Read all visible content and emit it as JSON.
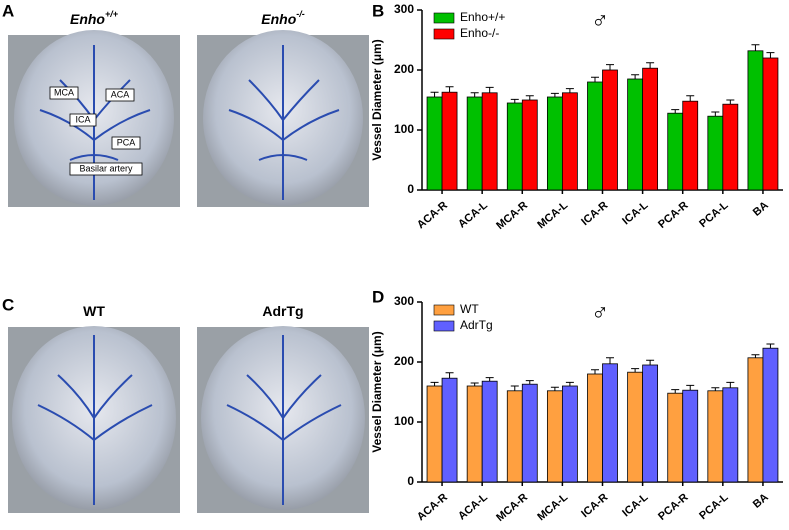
{
  "panel_labels": [
    "A",
    "B",
    "C",
    "D"
  ],
  "images": [
    {
      "base": "Enho",
      "sup": "+/+"
    },
    {
      "base": "Enho",
      "sup": "-/-"
    },
    {
      "base": "WT",
      "sup": null
    },
    {
      "base": "AdrTg",
      "sup": null
    }
  ],
  "annotations": [
    "MCA",
    "ACA",
    "ICA",
    "PCA",
    "Basilar artery"
  ],
  "chart_data": [
    {
      "type": "bar",
      "ylabel": "Vessel Diameter (μm)",
      "symbol": "♂",
      "categories": [
        "ACA-R",
        "ACA-L",
        "MCA-R",
        "MCA-L",
        "ICA-R",
        "ICA-L",
        "PCA-R",
        "PCA-L",
        "BA"
      ],
      "series": [
        {
          "name": "Enho+/+",
          "color": "#00c000",
          "values": [
            155,
            155,
            145,
            155,
            180,
            185,
            128,
            123,
            232
          ],
          "errors": [
            8,
            7,
            6,
            6,
            8,
            7,
            6,
            7,
            10
          ]
        },
        {
          "name": "Enho-/-",
          "color": "#ff0000",
          "values": [
            163,
            162,
            150,
            162,
            200,
            203,
            148,
            143,
            220
          ],
          "errors": [
            9,
            9,
            7,
            7,
            9,
            9,
            9,
            7,
            9
          ]
        }
      ],
      "ylim": [
        0,
        300
      ],
      "yticks": [
        0,
        100,
        200,
        300
      ],
      "legend": "top-left"
    },
    {
      "type": "bar",
      "ylabel": "Vessel Diameter (μm)",
      "symbol": "♂",
      "categories": [
        "ACA-R",
        "ACA-L",
        "MCA-R",
        "MCA-L",
        "ICA-R",
        "ICA-L",
        "PCA-R",
        "PCA-L",
        "BA"
      ],
      "series": [
        {
          "name": "WT",
          "color": "#ffa040",
          "values": [
            160,
            160,
            152,
            152,
            180,
            183,
            148,
            152,
            207
          ],
          "errors": [
            6,
            5,
            8,
            6,
            7,
            6,
            6,
            5,
            5
          ]
        },
        {
          "name": "AdrTg",
          "color": "#6060ff",
          "values": [
            173,
            168,
            163,
            160,
            197,
            195,
            153,
            157,
            223
          ],
          "errors": [
            9,
            6,
            6,
            6,
            10,
            8,
            8,
            9,
            7
          ]
        }
      ],
      "ylim": [
        0,
        300
      ],
      "yticks": [
        0,
        100,
        200,
        300
      ],
      "legend": "top-left"
    }
  ]
}
